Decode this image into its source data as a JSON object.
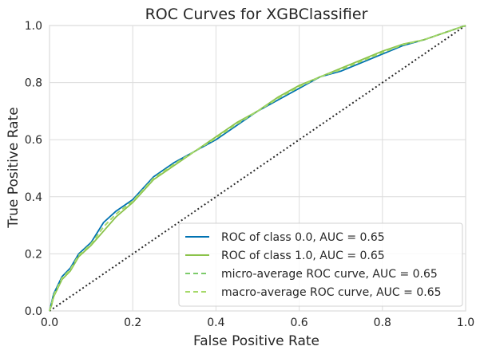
{
  "chart_data": {
    "type": "line",
    "title": "ROC Curves for XGBClassifier",
    "xlabel": "False Positive Rate",
    "ylabel": "True Positive Rate",
    "xlim": [
      0.0,
      1.0
    ],
    "ylim": [
      0.0,
      1.0
    ],
    "xticks": [
      "0.0",
      "0.2",
      "0.4",
      "0.6",
      "0.8",
      "1.0"
    ],
    "yticks": [
      "0.0",
      "0.2",
      "0.4",
      "0.6",
      "0.8",
      "1.0"
    ],
    "grid": true,
    "legend_position": "lower-right",
    "series": [
      {
        "name": "ROC of class 0.0, AUC = 0.65",
        "color": "#0072B2",
        "style": "solid",
        "x": [
          0.0,
          0.005,
          0.01,
          0.02,
          0.03,
          0.05,
          0.07,
          0.1,
          0.13,
          0.16,
          0.2,
          0.25,
          0.3,
          0.35,
          0.4,
          0.45,
          0.5,
          0.55,
          0.6,
          0.65,
          0.7,
          0.75,
          0.8,
          0.85,
          0.9,
          0.95,
          1.0
        ],
        "y": [
          0.0,
          0.03,
          0.06,
          0.09,
          0.12,
          0.15,
          0.2,
          0.24,
          0.31,
          0.35,
          0.39,
          0.47,
          0.52,
          0.56,
          0.6,
          0.65,
          0.7,
          0.74,
          0.78,
          0.82,
          0.84,
          0.87,
          0.9,
          0.93,
          0.95,
          0.975,
          1.0
        ]
      },
      {
        "name": "ROC of class 1.0, AUC = 0.65",
        "color": "#8BC34A",
        "style": "solid",
        "x": [
          0.0,
          0.005,
          0.01,
          0.02,
          0.03,
          0.05,
          0.07,
          0.1,
          0.13,
          0.16,
          0.2,
          0.25,
          0.3,
          0.35,
          0.4,
          0.45,
          0.5,
          0.55,
          0.6,
          0.65,
          0.7,
          0.75,
          0.8,
          0.85,
          0.9,
          0.95,
          1.0
        ],
        "y": [
          0.0,
          0.02,
          0.05,
          0.08,
          0.11,
          0.14,
          0.19,
          0.23,
          0.28,
          0.33,
          0.38,
          0.46,
          0.51,
          0.56,
          0.61,
          0.66,
          0.7,
          0.75,
          0.79,
          0.82,
          0.85,
          0.88,
          0.91,
          0.935,
          0.95,
          0.975,
          1.0
        ]
      },
      {
        "name": "micro-average ROC curve, AUC = 0.65",
        "color": "#7DCB6B",
        "style": "dashed",
        "x": [
          0.0,
          0.005,
          0.01,
          0.02,
          0.03,
          0.05,
          0.07,
          0.1,
          0.13,
          0.16,
          0.2,
          0.25,
          0.3,
          0.35,
          0.4,
          0.45,
          0.5,
          0.55,
          0.6,
          0.65,
          0.7,
          0.75,
          0.8,
          0.85,
          0.9,
          0.95,
          1.0
        ],
        "y": [
          0.0,
          0.025,
          0.055,
          0.085,
          0.115,
          0.145,
          0.195,
          0.235,
          0.295,
          0.34,
          0.385,
          0.465,
          0.515,
          0.56,
          0.605,
          0.655,
          0.7,
          0.745,
          0.785,
          0.82,
          0.845,
          0.875,
          0.905,
          0.933,
          0.95,
          0.975,
          1.0
        ]
      },
      {
        "name": "macro-average ROC curve, AUC = 0.65",
        "color": "#A6D96A",
        "style": "dashed",
        "x": [
          0.0,
          0.005,
          0.01,
          0.02,
          0.03,
          0.05,
          0.07,
          0.1,
          0.13,
          0.16,
          0.2,
          0.25,
          0.3,
          0.35,
          0.4,
          0.45,
          0.5,
          0.55,
          0.6,
          0.65,
          0.7,
          0.75,
          0.8,
          0.85,
          0.9,
          0.95,
          1.0
        ],
        "y": [
          0.0,
          0.025,
          0.055,
          0.085,
          0.115,
          0.145,
          0.195,
          0.235,
          0.295,
          0.34,
          0.385,
          0.465,
          0.515,
          0.56,
          0.605,
          0.655,
          0.7,
          0.745,
          0.785,
          0.82,
          0.845,
          0.875,
          0.905,
          0.933,
          0.95,
          0.975,
          1.0
        ]
      }
    ],
    "reference_line": {
      "x": [
        0.0,
        1.0
      ],
      "y": [
        0.0,
        1.0
      ],
      "color": "#2a2a2a",
      "style": "dotted"
    }
  }
}
